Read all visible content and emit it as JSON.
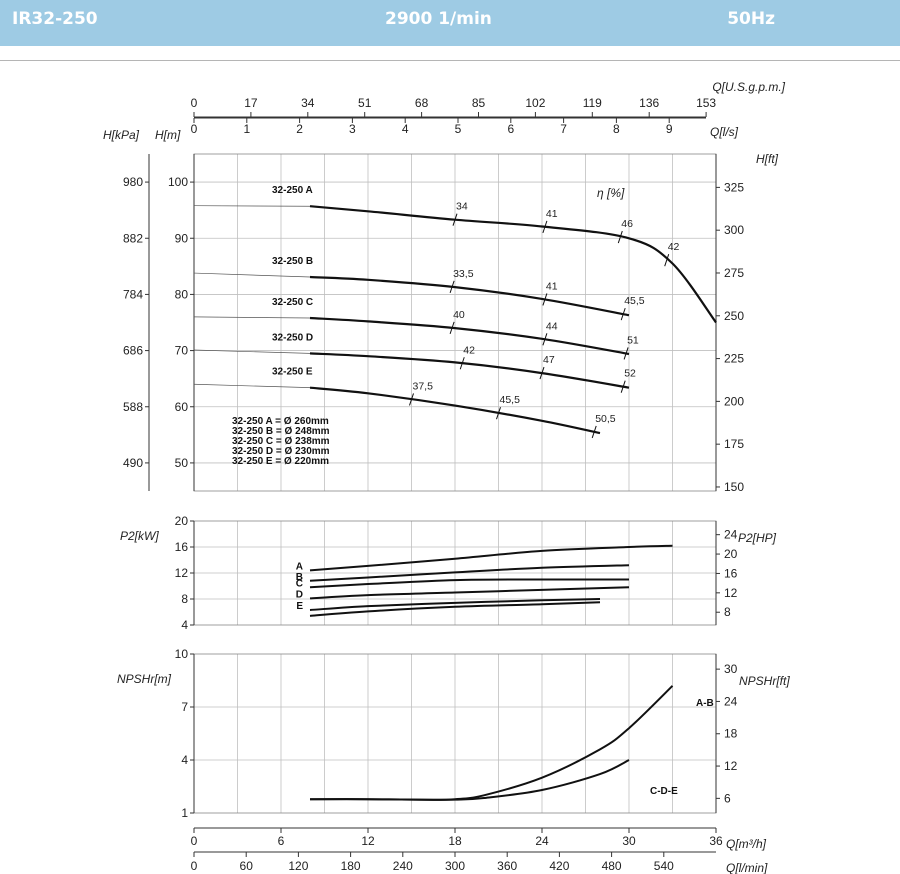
{
  "header": {
    "model": "IR32-250",
    "speed": "2900 1/min",
    "frequency": "50Hz"
  },
  "colors": {
    "header_bg": "#9ecbe4",
    "curve": "#111111",
    "grid": "#bfbfbf"
  },
  "top_axes": {
    "usgpm": {
      "label": "Q[U.S.g.p.m.]",
      "ticks": [
        "0",
        "17",
        "34",
        "51",
        "68",
        "85",
        "102",
        "119",
        "136",
        "153"
      ]
    },
    "ls": {
      "label": "Q[l/s]",
      "ticks": [
        "0",
        "1",
        "2",
        "3",
        "4",
        "5",
        "6",
        "7",
        "8",
        "9"
      ]
    }
  },
  "bottom_axes": {
    "m3h": {
      "label": "Q[m³/h]",
      "ticks": [
        "0",
        "6",
        "12",
        "18",
        "24",
        "30",
        "36"
      ]
    },
    "lmin": {
      "label": "Q[l/min]",
      "ticks": [
        "0",
        "60",
        "120",
        "180",
        "240",
        "300",
        "360",
        "420",
        "480",
        "540"
      ]
    }
  },
  "chart_data": [
    {
      "type": "line",
      "panel": "head",
      "xlim": [
        0,
        36
      ],
      "ylim": [
        45,
        105
      ],
      "left_axis_m": {
        "label": "H[m]",
        "ticks": [
          "50",
          "60",
          "70",
          "80",
          "90",
          "100"
        ]
      },
      "left_axis_kpa": {
        "label": "H[kPa]",
        "ticks": [
          "490",
          "588",
          "686",
          "784",
          "882",
          "980"
        ]
      },
      "right_axis_ft": {
        "label": "H[ft]",
        "ticks": [
          "150",
          "175",
          "200",
          "225",
          "250",
          "275",
          "300",
          "325"
        ]
      },
      "efficiency_label": "η [%]",
      "grid": true,
      "series": [
        {
          "name": "32-250 A",
          "x": [
            0,
            8,
            12,
            18,
            24,
            30,
            33,
            36
          ],
          "y": [
            95.8,
            95.7,
            94.8,
            93.3,
            92.1,
            90.0,
            85.5,
            75.0
          ],
          "eff": [
            {
              "x": 18,
              "label": "34"
            },
            {
              "x": 24.2,
              "label": "41"
            },
            {
              "x": 29.4,
              "label": "46"
            },
            {
              "x": 32.6,
              "label": "42"
            }
          ]
        },
        {
          "name": "32-250 B",
          "x": [
            0,
            8,
            12,
            18,
            24,
            30
          ],
          "y": [
            83.8,
            83.1,
            82.6,
            81.3,
            79.2,
            76.3
          ],
          "eff": [
            {
              "x": 17.8,
              "label": "33,5"
            },
            {
              "x": 24.2,
              "label": "41"
            },
            {
              "x": 29.6,
              "label": "45,5"
            }
          ]
        },
        {
          "name": "32-250 C",
          "x": [
            0,
            8,
            12,
            18,
            24,
            30
          ],
          "y": [
            76.0,
            75.8,
            75.2,
            74.0,
            72.1,
            69.4
          ],
          "eff": [
            {
              "x": 17.8,
              "label": "40"
            },
            {
              "x": 24.2,
              "label": "44"
            },
            {
              "x": 29.8,
              "label": "51"
            }
          ]
        },
        {
          "name": "32-250 D",
          "x": [
            0,
            8,
            12,
            18,
            24,
            30
          ],
          "y": [
            70.1,
            69.5,
            69.0,
            67.9,
            66.0,
            63.4
          ],
          "eff": [
            {
              "x": 18.5,
              "label": "42"
            },
            {
              "x": 24.0,
              "label": "47"
            },
            {
              "x": 29.6,
              "label": "52"
            }
          ]
        },
        {
          "name": "32-250 E",
          "x": [
            0,
            8,
            12,
            18,
            24,
            28
          ],
          "y": [
            64.0,
            63.4,
            62.4,
            60.2,
            57.5,
            55.3
          ],
          "eff": [
            {
              "x": 15.0,
              "label": "37,5"
            },
            {
              "x": 21.0,
              "label": "45,5"
            },
            {
              "x": 27.6,
              "label": "50,5"
            }
          ]
        }
      ],
      "annotations": [
        "32-250 A = Ø 260mm",
        "32-250 B = Ø 248mm",
        "32-250 C = Ø 238mm",
        "32-250 D = Ø 230mm",
        "32-250 E = Ø 220mm"
      ]
    },
    {
      "type": "line",
      "panel": "power",
      "xlim": [
        0,
        36
      ],
      "ylim": [
        4,
        20
      ],
      "left_axis": {
        "label": "P2[kW]",
        "ticks": [
          "4",
          "8",
          "12",
          "16",
          "20"
        ]
      },
      "right_axis": {
        "label": "P2[HP]",
        "ticks": [
          "8",
          "12",
          "16",
          "20",
          "24"
        ]
      },
      "grid": true,
      "series": [
        {
          "name": "A",
          "x": [
            8,
            12,
            18,
            24,
            30,
            33
          ],
          "y": [
            12.4,
            13.1,
            14.2,
            15.4,
            16.0,
            16.2
          ]
        },
        {
          "name": "B",
          "x": [
            8,
            12,
            18,
            24,
            30
          ],
          "y": [
            10.8,
            11.3,
            12.1,
            12.8,
            13.2
          ]
        },
        {
          "name": "C",
          "x": [
            8,
            12,
            18,
            24,
            30
          ],
          "y": [
            9.8,
            10.3,
            10.9,
            11.0,
            11.0
          ]
        },
        {
          "name": "D",
          "x": [
            8,
            12,
            18,
            24,
            30
          ],
          "y": [
            8.1,
            8.6,
            9.0,
            9.4,
            9.8
          ]
        },
        {
          "name": "E",
          "x": [
            8,
            12,
            18,
            24,
            28
          ],
          "y": [
            6.3,
            6.9,
            7.4,
            7.8,
            8.0
          ]
        },
        {
          "name": "",
          "x": [
            8,
            12,
            18,
            24,
            28
          ],
          "y": [
            5.4,
            6.1,
            6.8,
            7.2,
            7.5
          ]
        }
      ]
    },
    {
      "type": "line",
      "panel": "npsh",
      "xlim": [
        0,
        36
      ],
      "ylim": [
        1,
        10
      ],
      "left_axis": {
        "label": "NPSHr[m]",
        "ticks": [
          "1",
          "4",
          "7",
          "10"
        ]
      },
      "right_axis": {
        "label": "NPSHr[ft]",
        "ticks": [
          "6",
          "12",
          "18",
          "24",
          "30"
        ]
      },
      "grid": true,
      "series": [
        {
          "name": "A-B",
          "x": [
            8,
            12,
            16,
            18,
            20,
            24,
            28,
            30,
            33
          ],
          "y": [
            1.78,
            1.78,
            1.75,
            1.78,
            2.0,
            3.0,
            4.6,
            5.8,
            8.2
          ]
        },
        {
          "name": "C-D-E",
          "x": [
            8,
            12,
            16,
            18,
            20,
            24,
            28,
            30
          ],
          "y": [
            1.78,
            1.78,
            1.75,
            1.76,
            1.85,
            2.3,
            3.2,
            4.0
          ]
        }
      ]
    }
  ]
}
